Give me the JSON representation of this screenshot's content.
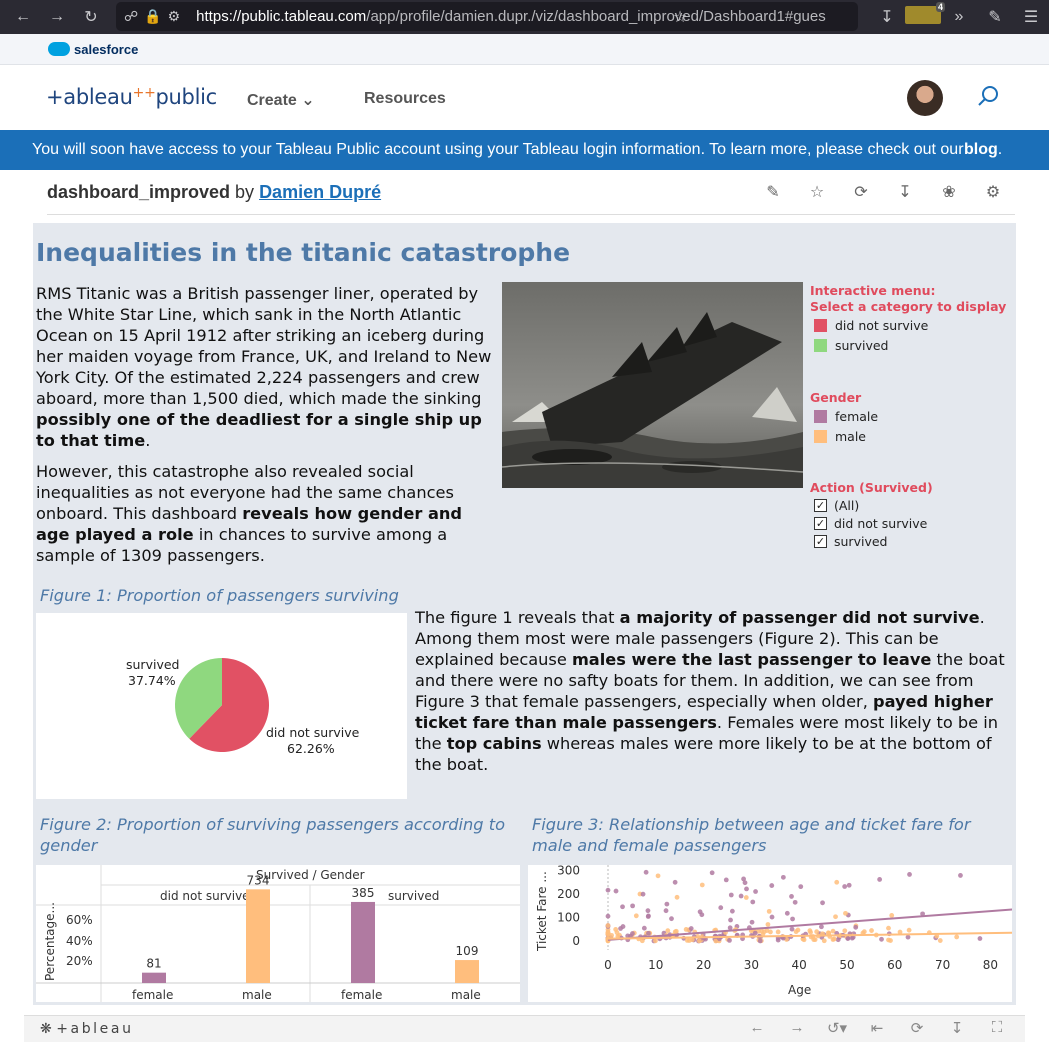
{
  "browser": {
    "url_host": "https://public.tableau.com",
    "url_path": "/app/profile/damien.dupr./viz/dashboard_improved/Dashboard1#gues",
    "extension_badge": "4"
  },
  "salesforce": {
    "label": "salesforce"
  },
  "header": {
    "logo_text": "+ableau",
    "logo_public": "public",
    "nav_create": "Create",
    "nav_resources": "Resources"
  },
  "banner": {
    "text": "You will soon have access to your Tableau Public account using your Tableau login information. To learn more, please check out our ",
    "link": "blog",
    "end": "."
  },
  "viz": {
    "name": "dashboard_improved",
    "by": " by ",
    "author": "Damien Dupré"
  },
  "dashboard": {
    "title": "Inequalities in the titanic catastrophe",
    "intro_p1_a": "RMS Titanic was a British passenger liner, operated by the White Star Line, which sank in the North Atlantic Ocean on 15 April 1912 after striking an iceberg during her maiden voyage from France, UK, and Ireland to New York City. Of the estimated 2,224 passengers and crew aboard, more than 1,500 died, which made the sinking ",
    "intro_p1_b": "possibly one of the deadliest for a single ship up to that time",
    "intro_p1_c": ".",
    "intro_p2_a": "However, this catastrophe also revealed social inequalities as not everyone had the same chances onboard. This dashboard ",
    "intro_p2_b": "reveals how gender and age played a role",
    "intro_p2_c": " in chances to survive among a sample of 1309 passengers.",
    "legend_menu_title1": "Interactive menu:",
    "legend_menu_title2": "Select a category to display",
    "legend_menu_items": [
      "did not survive",
      "survived"
    ],
    "legend_gender_title": "Gender",
    "legend_gender_items": [
      "female",
      "male"
    ],
    "legend_action_title": "Action (Survived)",
    "legend_action_items": [
      "(All)",
      "did not survive",
      "survived"
    ],
    "fig1_title": "Figure 1: Proportion of passengers surviving",
    "fig1_text_1": "The figure 1 reveals that ",
    "fig1_text_2": "a majority of passenger did not survive",
    "fig1_text_3": ". Among them most were male passengers (Figure 2). This can be explained because ",
    "fig1_text_4": "males were the last passenger to leave",
    "fig1_text_5": " the boat and there were no safty boats for them. In addition, we can see from Figure 3 that female passengers, especially when older, ",
    "fig1_text_6": "payed higher ticket fare than male passengers",
    "fig1_text_7": ". Females were most likely to be in the ",
    "fig1_text_8": "top cabins",
    "fig1_text_9": " whereas males were more likely to be at the bottom of the boat.",
    "fig2_title": "Figure 2: Proportion of surviving passengers according to gender",
    "fig3_title": "Figure 3: Relationship between age and ticket fare for male and female passengers"
  },
  "colors": {
    "not_survived": "#e15164",
    "survived": "#8fd87f",
    "female": "#b07aa1",
    "male": "#ffbe7d",
    "title_blue": "#4e79a7",
    "legend_red": "#e04b5d"
  },
  "chart_data": [
    {
      "type": "pie",
      "labels": [
        "did not survive",
        "survived"
      ],
      "values": [
        62.26,
        37.74
      ],
      "value_labels": [
        "62.26%",
        "37.74%"
      ]
    },
    {
      "type": "bar",
      "title": "Survived / Gender",
      "groups": [
        "did not survive",
        "survived"
      ],
      "categories": [
        "female",
        "male",
        "female",
        "male"
      ],
      "values": [
        81,
        734,
        385,
        109
      ],
      "ylabel": "Percentage...",
      "yticks": [
        "20%",
        "40%",
        "60%"
      ]
    },
    {
      "type": "scatter",
      "xlabel": "Age",
      "ylabel": "Ticket Fare ...",
      "xticks": [
        0,
        10,
        20,
        30,
        40,
        50,
        60,
        70,
        80
      ],
      "yticks": [
        0,
        100,
        200,
        300
      ],
      "xlim": [
        -4,
        85
      ],
      "ylim": [
        -20,
        330
      ],
      "trend_female": [
        [
          0,
          5
        ],
        [
          85,
          135
        ]
      ],
      "trend_male": [
        [
          0,
          10
        ],
        [
          85,
          35
        ]
      ]
    }
  ],
  "toolbar": {
    "logo": "+ableau"
  }
}
